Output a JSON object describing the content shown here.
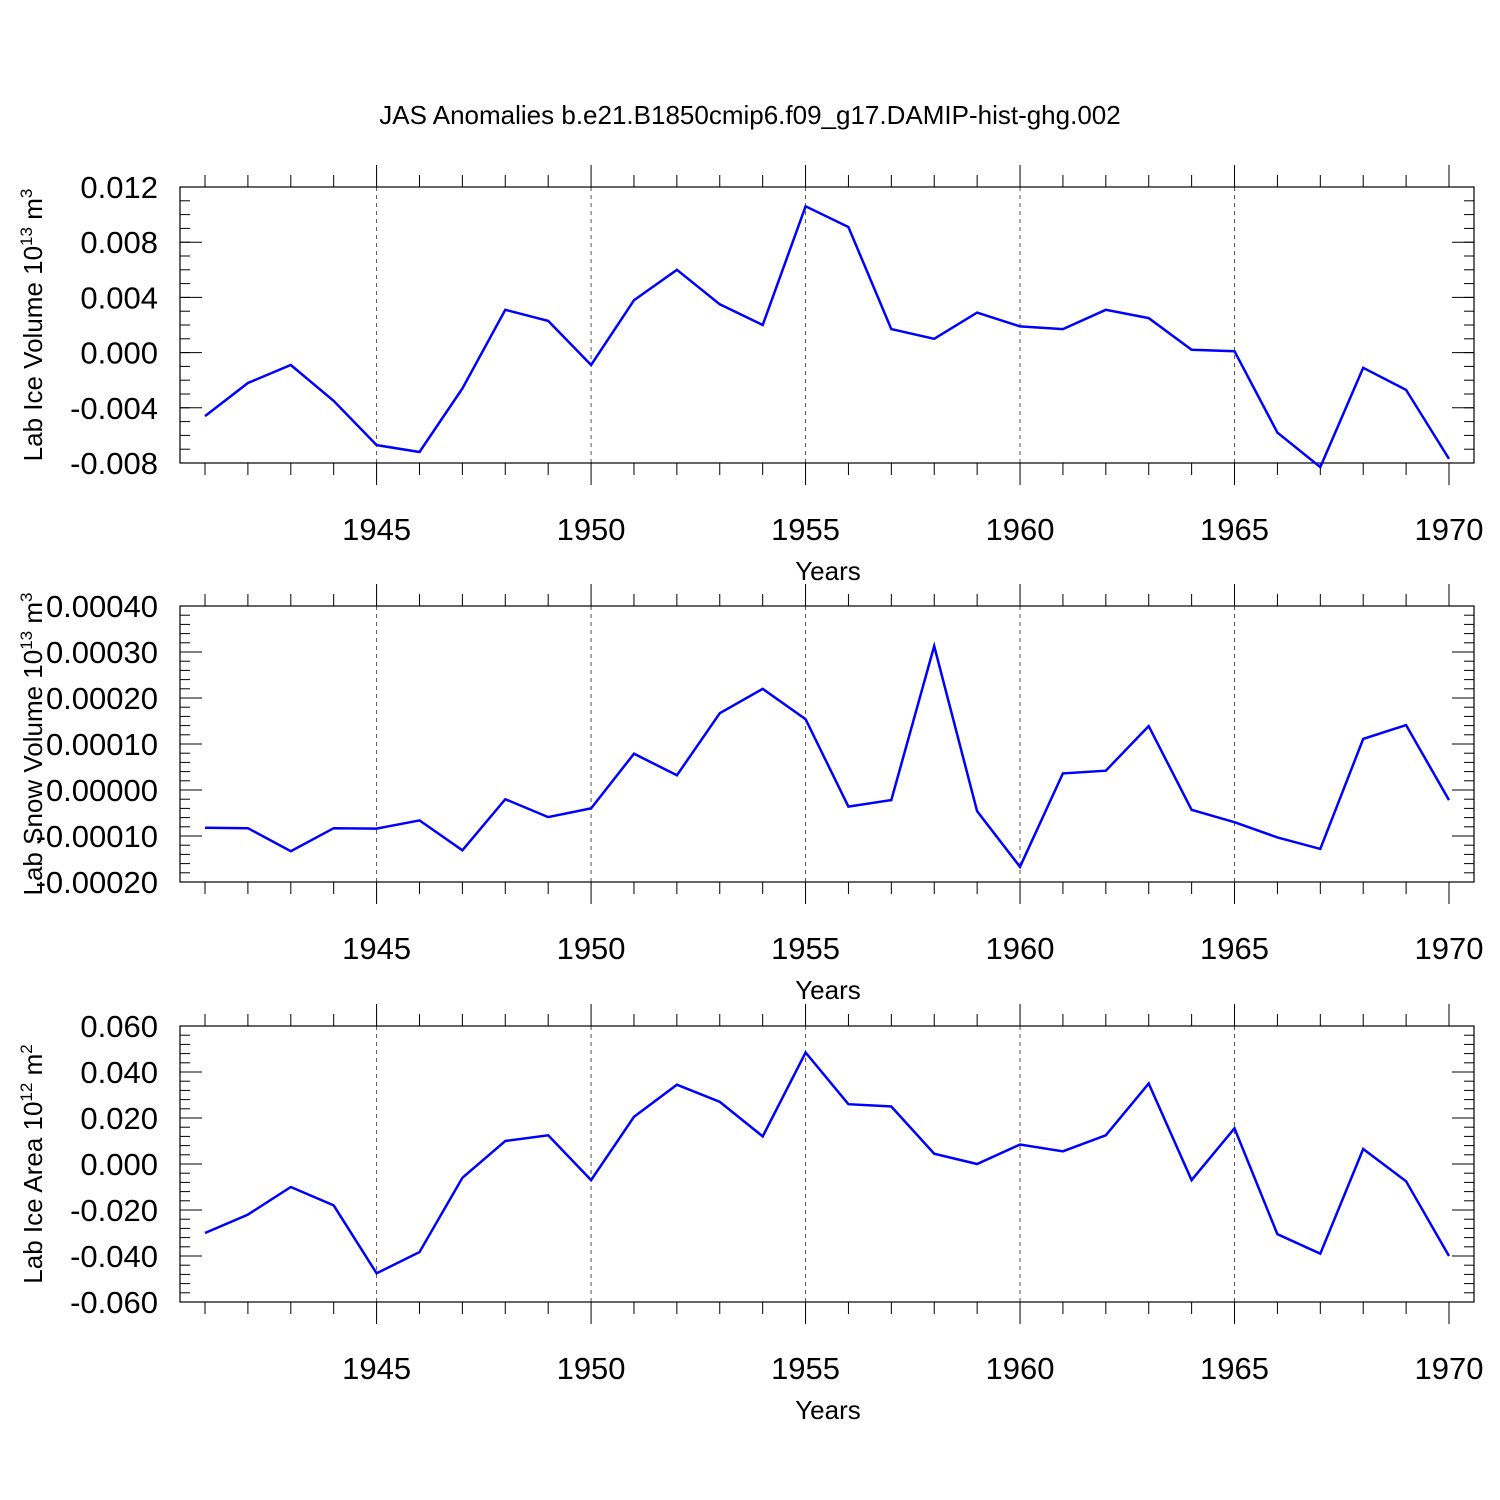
{
  "title": "JAS Anomalies b.e21.B1850cmip6.f09_g17.DAMIP-hist-ghg.002",
  "style": {
    "line_color": "#0000ff",
    "grid_color": "#555555"
  },
  "chart_data": [
    {
      "type": "line",
      "ylabel": "Lab Ice Volume 10",
      "ylabel_exp": "13",
      "ylabel_unit": " m",
      "ylabel_unit_exp": "3",
      "xlabel": "Years",
      "xlim": [
        1941,
        1970
      ],
      "ylim": [
        -0.009,
        0.0122
      ],
      "x_ticks": [
        1945,
        1950,
        1955,
        1960,
        1965,
        1970
      ],
      "y_ticks": [
        -0.008,
        -0.004,
        0.0,
        0.004,
        0.008,
        0.012
      ],
      "y_tick_labels": [
        "-0.008",
        "-0.004",
        "0.000",
        "0.004",
        "0.008",
        "0.012"
      ],
      "y_minor_step": 0.001,
      "x_grid": true,
      "x": [
        1941,
        1942,
        1943,
        1944,
        1945,
        1946,
        1947,
        1948,
        1949,
        1950,
        1951,
        1952,
        1953,
        1954,
        1955,
        1956,
        1957,
        1958,
        1959,
        1960,
        1961,
        1962,
        1963,
        1964,
        1965,
        1966,
        1967,
        1968,
        1969,
        1970
      ],
      "values": [
        -0.0046,
        -0.0022,
        -0.0009,
        -0.0035,
        -0.0067,
        -0.0072,
        -0.0026,
        0.0031,
        0.0023,
        -0.0009,
        0.0038,
        0.006,
        0.0035,
        0.002,
        0.0106,
        0.0091,
        0.0017,
        0.001,
        0.0029,
        0.0019,
        0.0017,
        0.0031,
        0.0025,
        0.0002,
        0.0001,
        -0.0058,
        -0.0083,
        -0.0011,
        -0.0027,
        -0.0077
      ]
    },
    {
      "type": "line",
      "ylabel": "Lab Snow Volume 10",
      "ylabel_exp": "13",
      "ylabel_unit": " m",
      "ylabel_unit_exp": "3",
      "xlabel": "Years",
      "xlim": [
        1941,
        1970
      ],
      "ylim": [
        -0.0002,
        0.0004
      ],
      "x_ticks": [
        1945,
        1950,
        1955,
        1960,
        1965,
        1970
      ],
      "y_ticks": [
        -0.0002,
        -0.0001,
        0.0,
        0.0001,
        0.0002,
        0.0003,
        0.0004
      ],
      "y_tick_labels": [
        "-0.00020",
        "-0.00010",
        "0.00000",
        "0.00010",
        "0.00020",
        "0.00030",
        "0.00040"
      ],
      "y_minor_step": 2e-05,
      "x_grid": true,
      "x": [
        1941,
        1942,
        1943,
        1944,
        1945,
        1946,
        1947,
        1948,
        1949,
        1950,
        1951,
        1952,
        1953,
        1954,
        1955,
        1956,
        1957,
        1958,
        1959,
        1960,
        1961,
        1962,
        1963,
        1964,
        1965,
        1966,
        1967,
        1968,
        1969,
        1970
      ],
      "values": [
        -8.2e-05,
        -8.3e-05,
        -0.000133,
        -8.3e-05,
        -8.4e-05,
        -6.6e-05,
        -0.000131,
        -2e-05,
        -5.9e-05,
        -4e-05,
        7.9e-05,
        3.2e-05,
        0.000167,
        0.00022,
        0.000154,
        -3.6e-05,
        -2.2e-05,
        0.000313,
        -4.6e-05,
        -0.000167,
        3.6e-05,
        4.2e-05,
        0.000139,
        -4.3e-05,
        -7e-05,
        -0.000103,
        -0.000128,
        0.000111,
        0.000141,
        -2.2e-05
      ]
    },
    {
      "type": "line",
      "ylabel": "Lab Ice Area 10",
      "ylabel_exp": "12",
      "ylabel_unit": " m",
      "ylabel_unit_exp": "2",
      "xlabel": "Years",
      "xlim": [
        1941,
        1970
      ],
      "ylim": [
        -0.06,
        0.06
      ],
      "x_ticks": [
        1945,
        1950,
        1955,
        1960,
        1965,
        1970
      ],
      "y_ticks": [
        -0.06,
        -0.04,
        -0.02,
        0.0,
        0.02,
        0.04,
        0.06
      ],
      "y_tick_labels": [
        "-0.060",
        "-0.040",
        "-0.020",
        "0.000",
        "0.020",
        "0.040",
        "0.060"
      ],
      "y_minor_step": 0.004,
      "x_grid": true,
      "x": [
        1941,
        1942,
        1943,
        1944,
        1945,
        1946,
        1947,
        1948,
        1949,
        1950,
        1951,
        1952,
        1953,
        1954,
        1955,
        1956,
        1957,
        1958,
        1959,
        1960,
        1961,
        1962,
        1963,
        1964,
        1965,
        1966,
        1967,
        1968,
        1969,
        1970
      ],
      "values": [
        -0.03,
        -0.022,
        -0.01,
        -0.018,
        -0.0475,
        -0.0383,
        -0.006,
        0.01,
        0.0125,
        -0.007,
        0.0205,
        0.0345,
        0.027,
        0.012,
        0.0485,
        0.026,
        0.025,
        0.0045,
        0.0,
        0.0085,
        0.0055,
        0.0125,
        0.035,
        -0.007,
        0.0155,
        -0.0305,
        -0.039,
        0.0065,
        -0.0075,
        -0.04
      ]
    }
  ]
}
